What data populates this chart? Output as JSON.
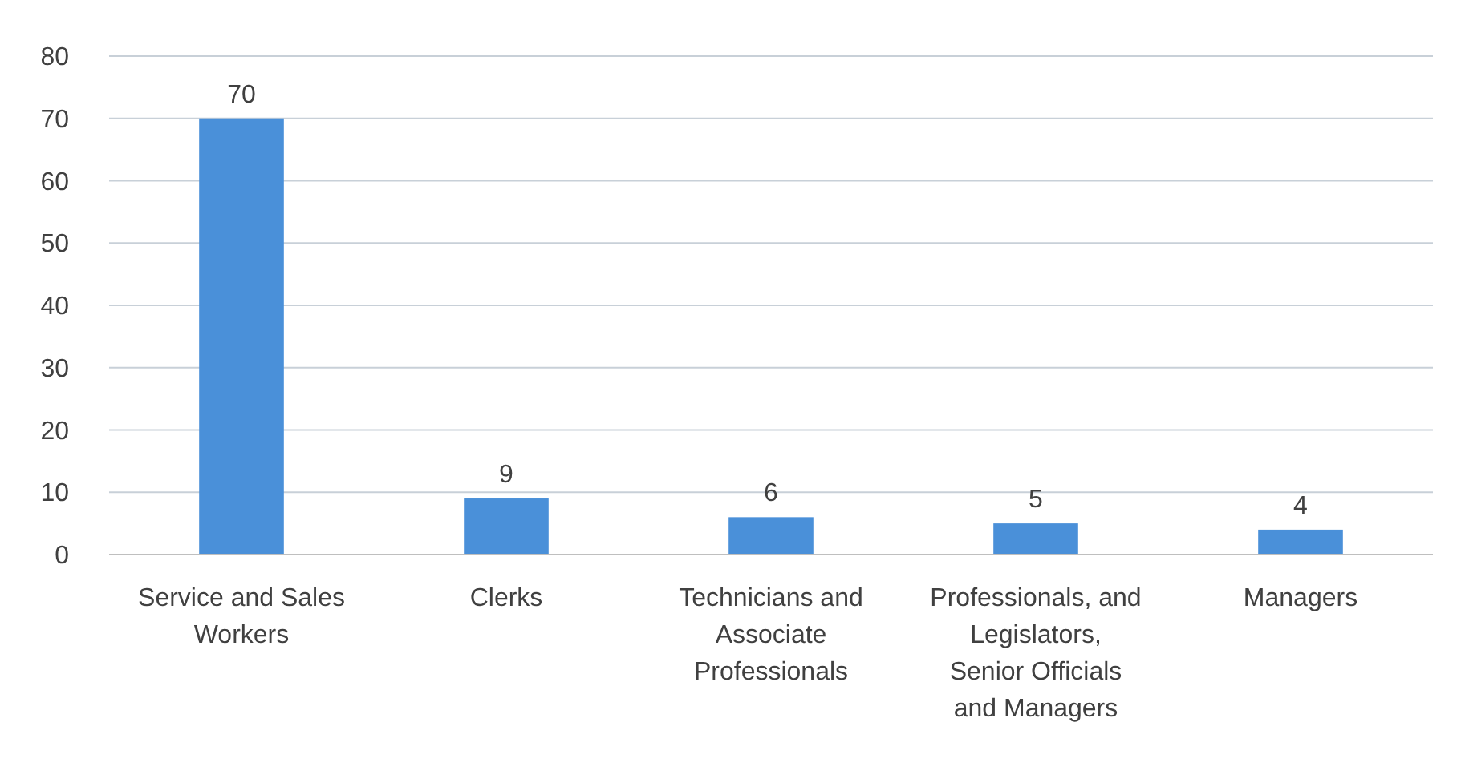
{
  "chart_data": {
    "type": "bar",
    "categories": [
      "Service and Sales Workers",
      "Clerks",
      "Technicians and Associate Professionals",
      "Professionals, and Legislators, Senior Officials and Managers",
      "Managers"
    ],
    "values": [
      70,
      9,
      6,
      5,
      4
    ],
    "color": "#4a90d9",
    "ylim": [
      0,
      80
    ],
    "yticks": [
      0,
      10,
      20,
      30,
      40,
      50,
      60,
      70,
      80
    ],
    "grid": "y",
    "data_labels": true
  }
}
